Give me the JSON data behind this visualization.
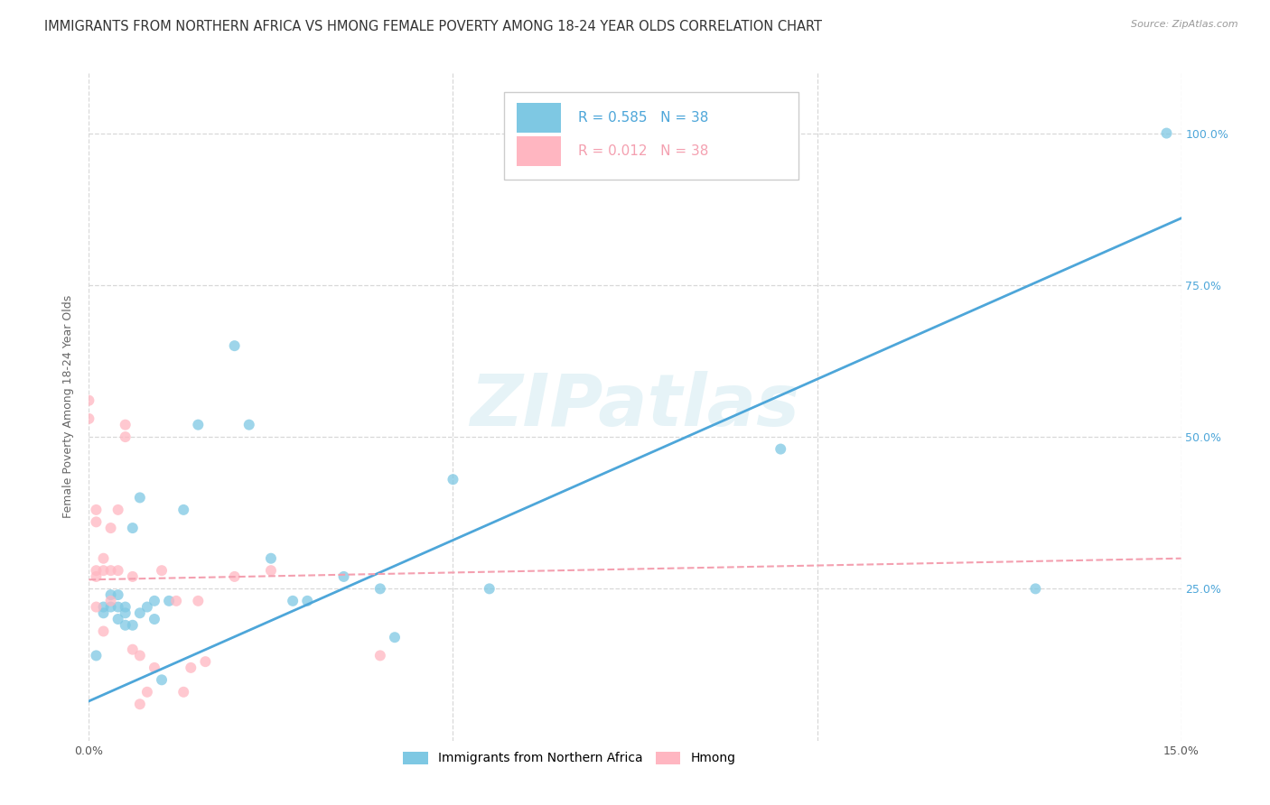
{
  "title": "IMMIGRANTS FROM NORTHERN AFRICA VS HMONG FEMALE POVERTY AMONG 18-24 YEAR OLDS CORRELATION CHART",
  "source": "Source: ZipAtlas.com",
  "ylabel": "Female Poverty Among 18-24 Year Olds",
  "xlim": [
    0.0,
    0.15
  ],
  "ylim": [
    0.0,
    1.1
  ],
  "xticks": [
    0.0,
    0.05,
    0.1,
    0.15
  ],
  "xtick_labels": [
    "0.0%",
    "",
    "",
    "15.0%"
  ],
  "yticks": [
    0.25,
    0.5,
    0.75,
    1.0
  ],
  "ytick_labels_right": [
    "25.0%",
    "50.0%",
    "75.0%",
    "100.0%"
  ],
  "blue_R": "0.585",
  "blue_N": "38",
  "pink_R": "0.012",
  "pink_N": "38",
  "blue_color": "#7ec8e3",
  "pink_color": "#ffb6c1",
  "blue_line_color": "#4da6d9",
  "pink_line_color": "#f4a0b0",
  "legend_label_blue": "Immigrants from Northern Africa",
  "legend_label_pink": "Hmong",
  "watermark": "ZIPatlas",
  "blue_scatter_x": [
    0.001,
    0.002,
    0.002,
    0.003,
    0.003,
    0.004,
    0.004,
    0.004,
    0.005,
    0.005,
    0.005,
    0.006,
    0.006,
    0.007,
    0.007,
    0.008,
    0.009,
    0.009,
    0.01,
    0.011,
    0.013,
    0.015,
    0.02,
    0.022,
    0.025,
    0.028,
    0.03,
    0.035,
    0.04,
    0.042,
    0.05,
    0.055,
    0.095,
    0.13,
    0.148
  ],
  "blue_scatter_y": [
    0.14,
    0.21,
    0.22,
    0.22,
    0.24,
    0.2,
    0.22,
    0.24,
    0.19,
    0.21,
    0.22,
    0.19,
    0.35,
    0.4,
    0.21,
    0.22,
    0.23,
    0.2,
    0.1,
    0.23,
    0.38,
    0.52,
    0.65,
    0.52,
    0.3,
    0.23,
    0.23,
    0.27,
    0.25,
    0.17,
    0.43,
    0.25,
    0.48,
    0.25,
    1.0
  ],
  "pink_scatter_x": [
    0.0,
    0.0,
    0.001,
    0.001,
    0.001,
    0.001,
    0.001,
    0.002,
    0.002,
    0.002,
    0.003,
    0.003,
    0.003,
    0.004,
    0.004,
    0.005,
    0.005,
    0.006,
    0.006,
    0.007,
    0.007,
    0.008,
    0.009,
    0.01,
    0.012,
    0.013,
    0.014,
    0.015,
    0.016,
    0.02,
    0.025,
    0.04
  ],
  "pink_scatter_y": [
    0.56,
    0.53,
    0.28,
    0.27,
    0.36,
    0.38,
    0.22,
    0.3,
    0.28,
    0.18,
    0.35,
    0.28,
    0.23,
    0.38,
    0.28,
    0.52,
    0.5,
    0.27,
    0.15,
    0.14,
    0.06,
    0.08,
    0.12,
    0.28,
    0.23,
    0.08,
    0.12,
    0.23,
    0.13,
    0.27,
    0.28,
    0.14
  ],
  "blue_line_x": [
    0.0,
    0.15
  ],
  "blue_line_y": [
    0.065,
    0.86
  ],
  "pink_line_x": [
    0.0,
    0.15
  ],
  "pink_line_y": [
    0.265,
    0.3
  ],
  "title_fontsize": 10.5,
  "axis_fontsize": 9,
  "tick_fontsize": 9,
  "marker_size": 75,
  "background_color": "#ffffff",
  "grid_color": "#d8d8d8"
}
